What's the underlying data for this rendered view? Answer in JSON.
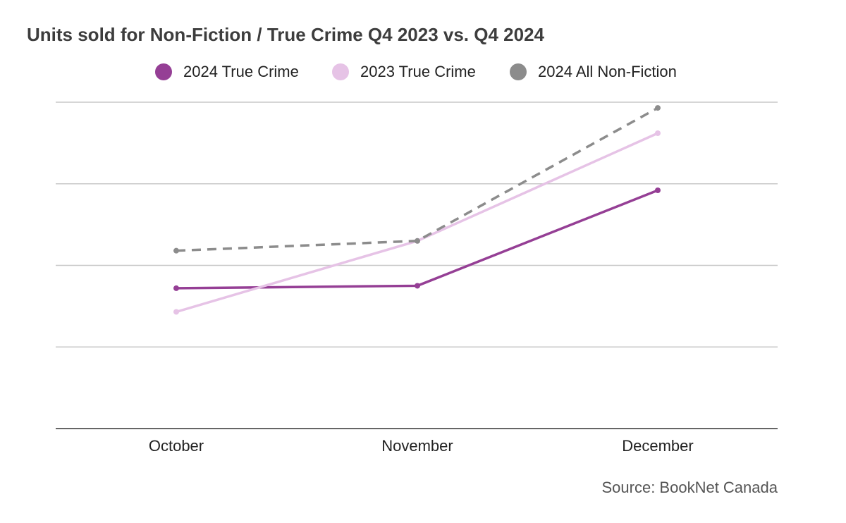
{
  "chart_data": {
    "type": "line",
    "title": "Units sold for Non-Fiction / True Crime Q4 2023 vs. Q4 2024",
    "categories": [
      "October",
      "November",
      "December"
    ],
    "series": [
      {
        "name": "2024 True Crime",
        "values": [
          1.72,
          1.75,
          2.92
        ],
        "color": "#953f95",
        "dashed": false
      },
      {
        "name": "2023 True Crime",
        "values": [
          1.43,
          2.3,
          3.62
        ],
        "color": "#e6c3e6",
        "dashed": false
      },
      {
        "name": "2024 All Non-Fiction",
        "values": [
          2.18,
          2.3,
          3.93
        ],
        "color": "#8c8c8c",
        "dashed": true
      }
    ],
    "xlabel": "",
    "ylabel": "",
    "ylim": [
      0,
      4
    ],
    "y_gridlines": [
      1,
      2,
      3,
      4
    ],
    "y_tick_labels_shown": false,
    "grid": true,
    "legend_position": "top-center",
    "source": "Source: BookNet Canada"
  }
}
